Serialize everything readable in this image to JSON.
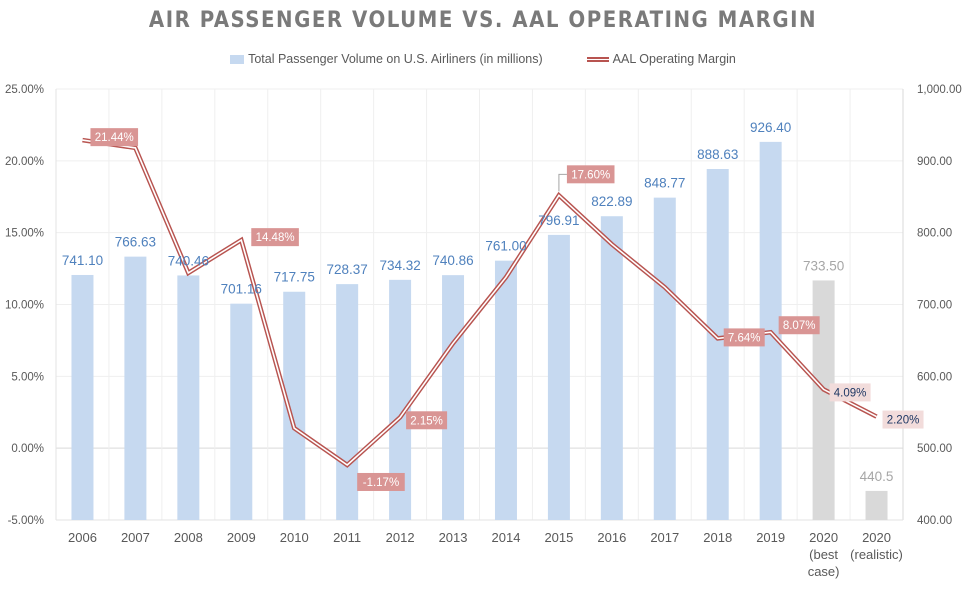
{
  "chart_data": {
    "type": "bar+line",
    "title": "AIR PASSENGER VOLUME VS. AAL OPERATING MARGIN",
    "categories": [
      "2006",
      "2007",
      "2008",
      "2009",
      "2010",
      "2011",
      "2012",
      "2013",
      "2014",
      "2015",
      "2016",
      "2017",
      "2018",
      "2019",
      "2020 (best case)",
      "2020 (realistic)"
    ],
    "category_lines": [
      [
        "2006"
      ],
      [
        "2007"
      ],
      [
        "2008"
      ],
      [
        "2009"
      ],
      [
        "2010"
      ],
      [
        "2011"
      ],
      [
        "2012"
      ],
      [
        "2013"
      ],
      [
        "2014"
      ],
      [
        "2015"
      ],
      [
        "2016"
      ],
      [
        "2017"
      ],
      [
        "2018"
      ],
      [
        "2019"
      ],
      [
        "2020",
        "(best",
        "case)"
      ],
      [
        "2020",
        "(realistic)"
      ]
    ],
    "series": [
      {
        "name": "Total Passenger Volume on U.S. Airliners (in millions)",
        "type": "bar",
        "axis": "right",
        "values": [
          741.1,
          766.63,
          740.46,
          701.16,
          717.75,
          728.37,
          734.32,
          740.86,
          761.0,
          796.91,
          822.89,
          848.77,
          888.63,
          926.4,
          733.5,
          440.5
        ],
        "labels": [
          "741.10",
          "766.63",
          "740.46",
          "701.16",
          "717.75",
          "728.37",
          "734.32",
          "740.86",
          "761.00",
          "796.91",
          "822.89",
          "848.77",
          "888.63",
          "926.40",
          "733.50",
          "440.5"
        ],
        "projected": [
          false,
          false,
          false,
          false,
          false,
          false,
          false,
          false,
          false,
          false,
          false,
          false,
          false,
          false,
          true,
          true
        ],
        "color": "#c6d9f0",
        "projected_color": "#d9d9d9"
      },
      {
        "name": "AAL Operating Margin",
        "type": "line",
        "axis": "left",
        "values": [
          21.44,
          20.9,
          12.2,
          14.48,
          1.4,
          -1.17,
          2.15,
          7.3,
          11.9,
          17.6,
          14.2,
          11.2,
          7.64,
          8.07,
          4.09,
          2.2
        ],
        "labels": [
          "21.44%",
          "",
          "",
          "14.48%",
          "",
          "-1.17%",
          "2.15%",
          "",
          "",
          "17.60%",
          "",
          "",
          "7.64%",
          "8.07%",
          "4.09%",
          "2.20%"
        ],
        "color": "#b85450"
      }
    ],
    "left_axis": {
      "min": -5,
      "max": 25,
      "step": 5,
      "ticks": [
        "-5.00%",
        "0.00%",
        "5.00%",
        "10.00%",
        "15.00%",
        "20.00%",
        "25.00%"
      ]
    },
    "right_axis": {
      "min": 400,
      "max": 1000,
      "step": 100,
      "ticks": [
        "400.00",
        "500.00",
        "600.00",
        "700.00",
        "800.00",
        "900.00",
        "1,000.00"
      ]
    },
    "legend_position": "top",
    "grid": true
  },
  "colors": {
    "bar": "#c6d9f0",
    "bar_projected": "#d9d9d9",
    "bar_label": "#4f81bd",
    "bar_label_projected": "#a6a6a6",
    "line": "#b85450",
    "line_label_bg": "#d99594",
    "line_label_text": "#ffffff",
    "line_label_bg_projected": "#f2dcdb",
    "line_label_text_projected": "#1f3864"
  },
  "legend": {
    "bar_label": "Total Passenger Volume on U.S. Airliners (in millions)",
    "line_label": "AAL Operating Margin"
  }
}
